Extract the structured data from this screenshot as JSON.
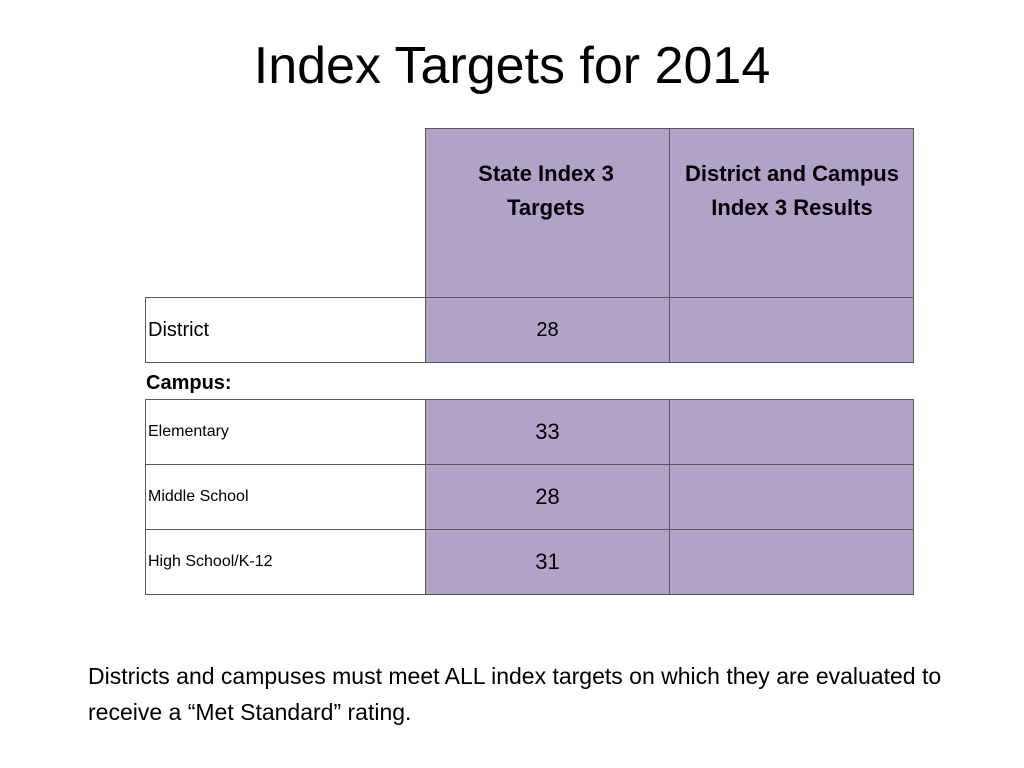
{
  "slide": {
    "title": "Index Targets for 2014",
    "colors": {
      "header_fill": "#b2a2c7",
      "border": "#595959"
    },
    "table": {
      "headers": [
        "State Index 3 Targets",
        "District and Campus Index 3 Results"
      ],
      "district_row": {
        "label": "District",
        "target": "28",
        "result": ""
      },
      "campus_label": "Campus:",
      "campus_rows": [
        {
          "label": "Elementary",
          "target": "33",
          "result": ""
        },
        {
          "label": "Middle School",
          "target": "28",
          "result": ""
        },
        {
          "label": "High School/K-12",
          "target": "31",
          "result": ""
        }
      ]
    },
    "note": "Districts and campuses  must meet ALL index targets on which they are evaluated to receive a “Met Standard” rating."
  }
}
